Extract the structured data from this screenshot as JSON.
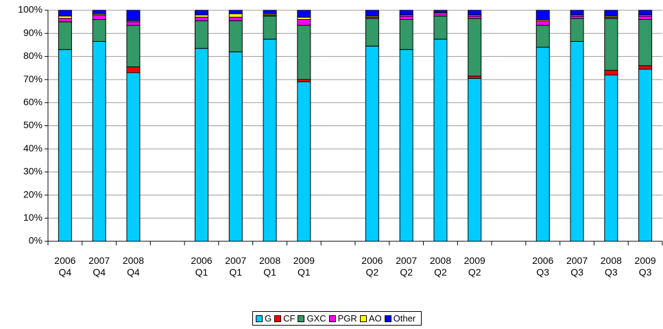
{
  "chart_data": {
    "type": "stacked_bar",
    "categories": [
      "2006 Q4",
      "2007 Q4",
      "2008 Q4",
      null,
      "2006 Q1",
      "2007 Q1",
      "2008 Q1",
      "2009 Q1",
      null,
      "2006 Q2",
      "2007 Q2",
      "2008 Q2",
      "2009 Q2",
      null,
      "2006 Q3",
      "2007 Q3",
      "2008 Q3",
      "2009 Q3"
    ],
    "series": [
      {
        "name": "G",
        "color": "#00ccff",
        "values": [
          83,
          86.5,
          73,
          null,
          83.5,
          82,
          87.5,
          69,
          null,
          84.5,
          83,
          87.5,
          70.5,
          null,
          84,
          86.5,
          72,
          74.5
        ]
      },
      {
        "name": "CF",
        "color": "#ff0000",
        "values": [
          0,
          0,
          2.5,
          null,
          0,
          0,
          0,
          1,
          null,
          0,
          0,
          0,
          1,
          null,
          0,
          0,
          2,
          1.5
        ]
      },
      {
        "name": "GXC",
        "color": "#339966",
        "values": [
          12,
          9.5,
          18,
          null,
          12,
          13.5,
          10,
          23.5,
          null,
          12,
          13,
          10,
          25,
          null,
          9.5,
          10,
          22.5,
          20
        ]
      },
      {
        "name": "PGR",
        "color": "#ff00ff",
        "values": [
          1.5,
          2,
          1.5,
          null,
          1.5,
          1.5,
          0.5,
          2.5,
          null,
          0.5,
          1.5,
          1,
          1,
          null,
          2,
          1,
          0.5,
          1.5
        ]
      },
      {
        "name": "AO",
        "color": "#ffff00",
        "values": [
          1,
          0.5,
          0.5,
          null,
          1,
          1.5,
          0.5,
          1,
          null,
          0.5,
          0.5,
          0.5,
          0.5,
          null,
          0.5,
          0.5,
          0.5,
          0.5
        ]
      },
      {
        "name": "Other",
        "color": "#0000ff",
        "values": [
          2.5,
          1.5,
          4.5,
          null,
          2,
          1.5,
          1.5,
          3,
          null,
          2.5,
          2,
          1,
          2,
          null,
          4,
          2,
          2.5,
          2
        ]
      }
    ],
    "ylim": [
      0,
      100
    ],
    "yticks": [
      {
        "value": 0,
        "label": "0%"
      },
      {
        "value": 10,
        "label": "10%"
      },
      {
        "value": 20,
        "label": "20%"
      },
      {
        "value": 30,
        "label": "30%"
      },
      {
        "value": 40,
        "label": "40%"
      },
      {
        "value": 50,
        "label": "50%"
      },
      {
        "value": 60,
        "label": "60%"
      },
      {
        "value": 70,
        "label": "70%"
      },
      {
        "value": 80,
        "label": "80%"
      },
      {
        "value": 90,
        "label": "90%"
      },
      {
        "value": 100,
        "label": "100%"
      }
    ],
    "grid": true,
    "legend": "bottom"
  }
}
